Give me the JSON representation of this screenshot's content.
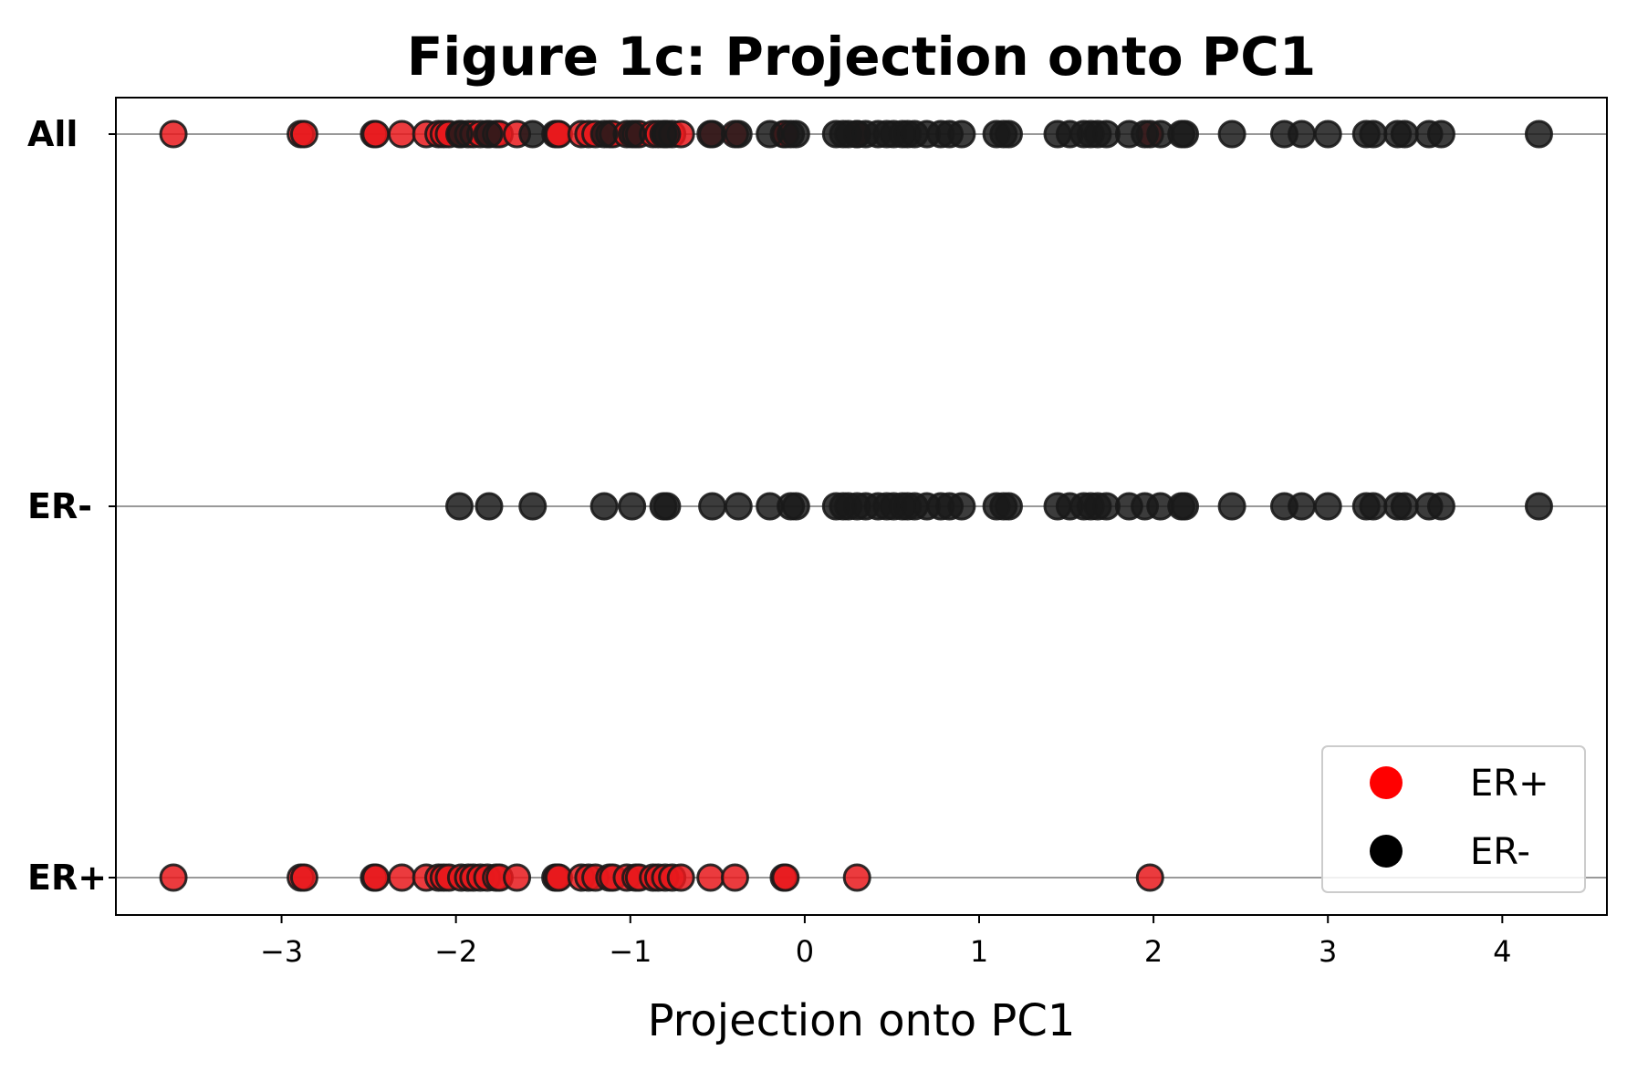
{
  "chart_data": {
    "type": "scatter",
    "title": "Figure 1c: Projection onto PC1",
    "xlabel": "Projection onto PC1",
    "ylabel": "",
    "xlim": [
      -3.95,
      4.6
    ],
    "x_ticks": [
      -3,
      -2,
      -1,
      0,
      1,
      2,
      3,
      4
    ],
    "x_tick_labels": [
      "−3",
      "−2",
      "−1",
      "0",
      "1",
      "2",
      "3",
      "4"
    ],
    "y_categories": [
      "ER+",
      "ER-",
      "All"
    ],
    "grid": "horizontal lines at each category",
    "legend": {
      "position": "lower-right",
      "entries": [
        {
          "label": "ER+",
          "color": "#ff0000"
        },
        {
          "label": "ER-",
          "color": "#000000"
        }
      ]
    },
    "series": [
      {
        "name": "ER+",
        "color": "#e8191c",
        "x": [
          -3.62,
          -2.89,
          -2.87,
          -2.47,
          -2.46,
          -2.31,
          -2.17,
          -2.1,
          -2.07,
          -2.04,
          -1.97,
          -1.93,
          -1.9,
          -1.86,
          -1.82,
          -1.77,
          -1.75,
          -1.65,
          -1.43,
          -1.42,
          -1.41,
          -1.28,
          -1.24,
          -1.2,
          -1.12,
          -1.1,
          -1.02,
          -0.97,
          -0.95,
          -0.87,
          -0.84,
          -0.8,
          -0.76,
          -0.71,
          -0.54,
          -0.4,
          -0.12,
          -0.11,
          0.3,
          1.98
        ]
      },
      {
        "name": "ER-",
        "color": "#1a1a1a",
        "x": [
          -1.98,
          -1.81,
          -1.56,
          -1.15,
          -0.99,
          -0.81,
          -0.79,
          -0.53,
          -0.38,
          -0.2,
          -0.08,
          -0.05,
          0.18,
          0.22,
          0.25,
          0.3,
          0.35,
          0.42,
          0.47,
          0.51,
          0.56,
          0.59,
          0.63,
          0.7,
          0.78,
          0.83,
          0.9,
          1.1,
          1.14,
          1.17,
          1.45,
          1.52,
          1.6,
          1.64,
          1.68,
          1.73,
          1.86,
          1.95,
          2.04,
          2.16,
          2.18,
          2.45,
          2.75,
          2.85,
          3.0,
          3.22,
          3.26,
          3.4,
          3.44,
          3.58,
          3.65,
          4.21
        ]
      }
    ]
  }
}
